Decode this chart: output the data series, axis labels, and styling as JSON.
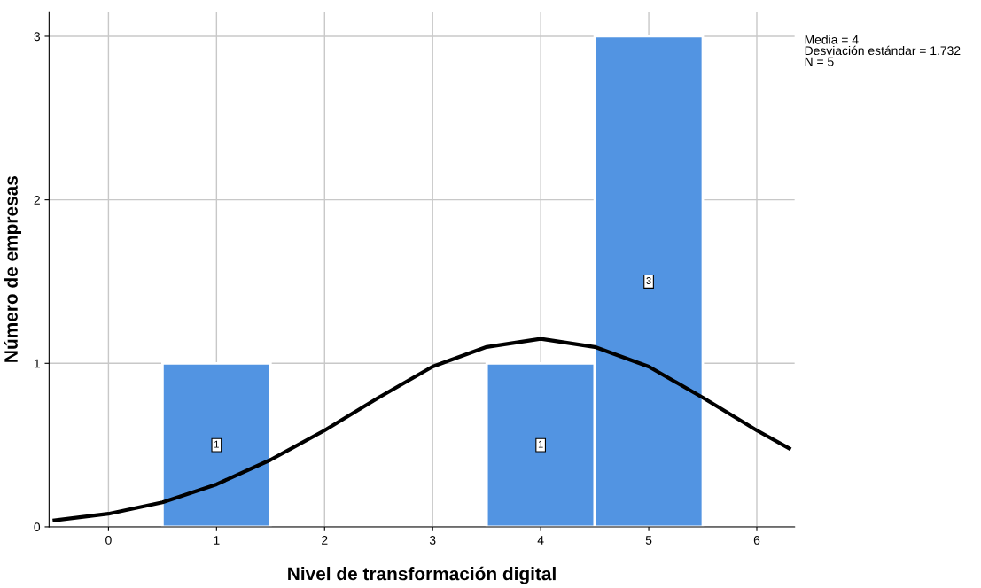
{
  "chart_data": {
    "type": "histogram",
    "xlabel": "Nivel de transformación digital",
    "ylabel": "Número de empresas",
    "bins": [
      0.5,
      1.5,
      2.5,
      3.5,
      4.5,
      5.5
    ],
    "values": [
      1,
      0,
      0,
      1,
      3
    ],
    "color": "#5294e2",
    "value_labels": [
      "1",
      null,
      null,
      "1",
      "3"
    ],
    "series": [
      {
        "type": "line",
        "color": "#000000",
        "x": [
          -0.5,
          0,
          0.5,
          1,
          1.5,
          2,
          2.5,
          3,
          3.5,
          4,
          4.5,
          5,
          5.5,
          6,
          6.3
        ],
        "values": [
          0.04,
          0.08,
          0.15,
          0.26,
          0.41,
          0.59,
          0.79,
          0.98,
          1.1,
          1.15,
          1.1,
          0.98,
          0.79,
          0.59,
          0.48
        ]
      }
    ],
    "xlim": [
      -0.55,
      6.35
    ],
    "ylim": [
      0,
      3.15
    ],
    "xticks": [
      0,
      1,
      2,
      3,
      4,
      5,
      6
    ],
    "yticks": [
      0,
      1,
      2,
      3
    ],
    "grid": true,
    "annotations": [
      "Media = 4\nDesviación estándar = 1.732\nN = 5"
    ]
  }
}
